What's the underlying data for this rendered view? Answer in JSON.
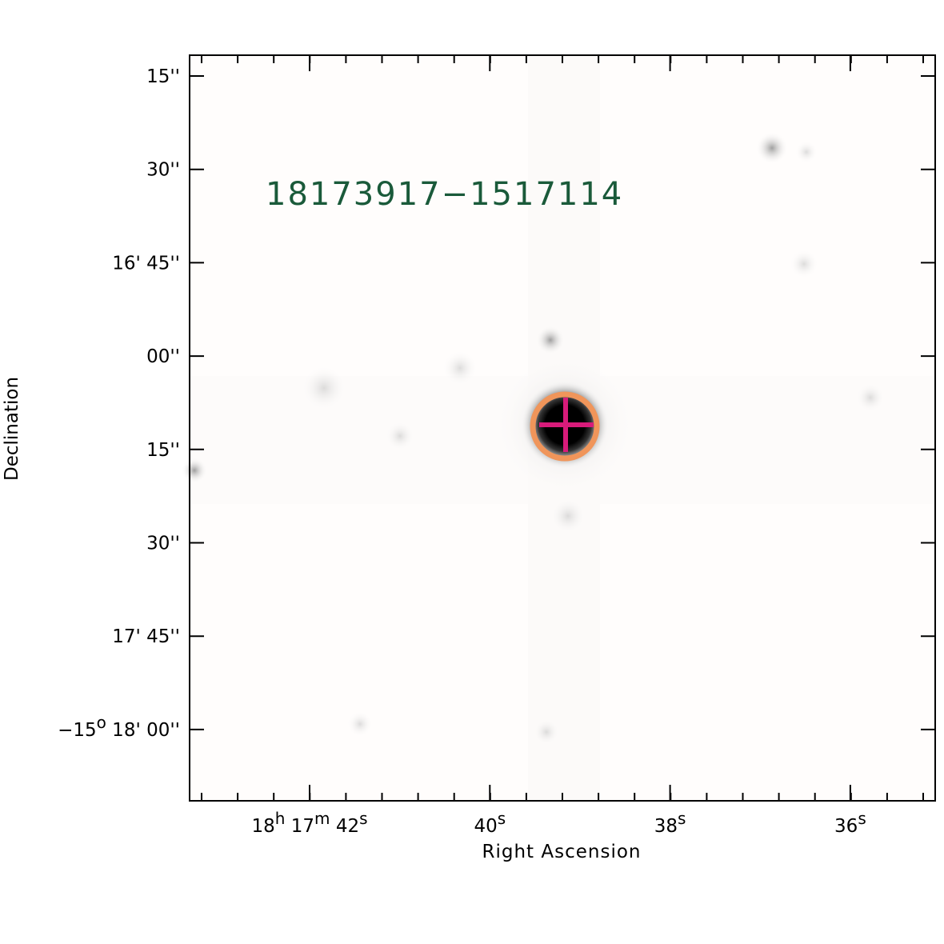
{
  "title": "18173917−1517114",
  "x_axis": {
    "label": "Right Ascension",
    "ticks": [
      [
        {
          "text": "18"
        },
        {
          "text": "h",
          "sup": true
        },
        {
          "text": " 17"
        },
        {
          "text": "m",
          "sup": true
        },
        {
          "text": " 42"
        },
        {
          "text": "s",
          "sup": true
        }
      ],
      [
        {
          "text": "40"
        },
        {
          "text": "s",
          "sup": true
        }
      ],
      [
        {
          "text": "38"
        },
        {
          "text": "s",
          "sup": true
        }
      ],
      [
        {
          "text": "36"
        },
        {
          "text": "s",
          "sup": true
        }
      ]
    ]
  },
  "y_axis": {
    "label": "Declination",
    "ticks": [
      [
        {
          "text": "15''"
        }
      ],
      [
        {
          "text": "30''"
        }
      ],
      [
        {
          "text": "16' 45''"
        }
      ],
      [
        {
          "text": "00''"
        }
      ],
      [
        {
          "text": "15''"
        }
      ],
      [
        {
          "text": "30''"
        }
      ],
      [
        {
          "text": "17' 45''"
        }
      ],
      [
        {
          "text": "−15"
        },
        {
          "text": "o",
          "sup": true
        },
        {
          "text": " 18' 00''"
        }
      ]
    ]
  }
}
